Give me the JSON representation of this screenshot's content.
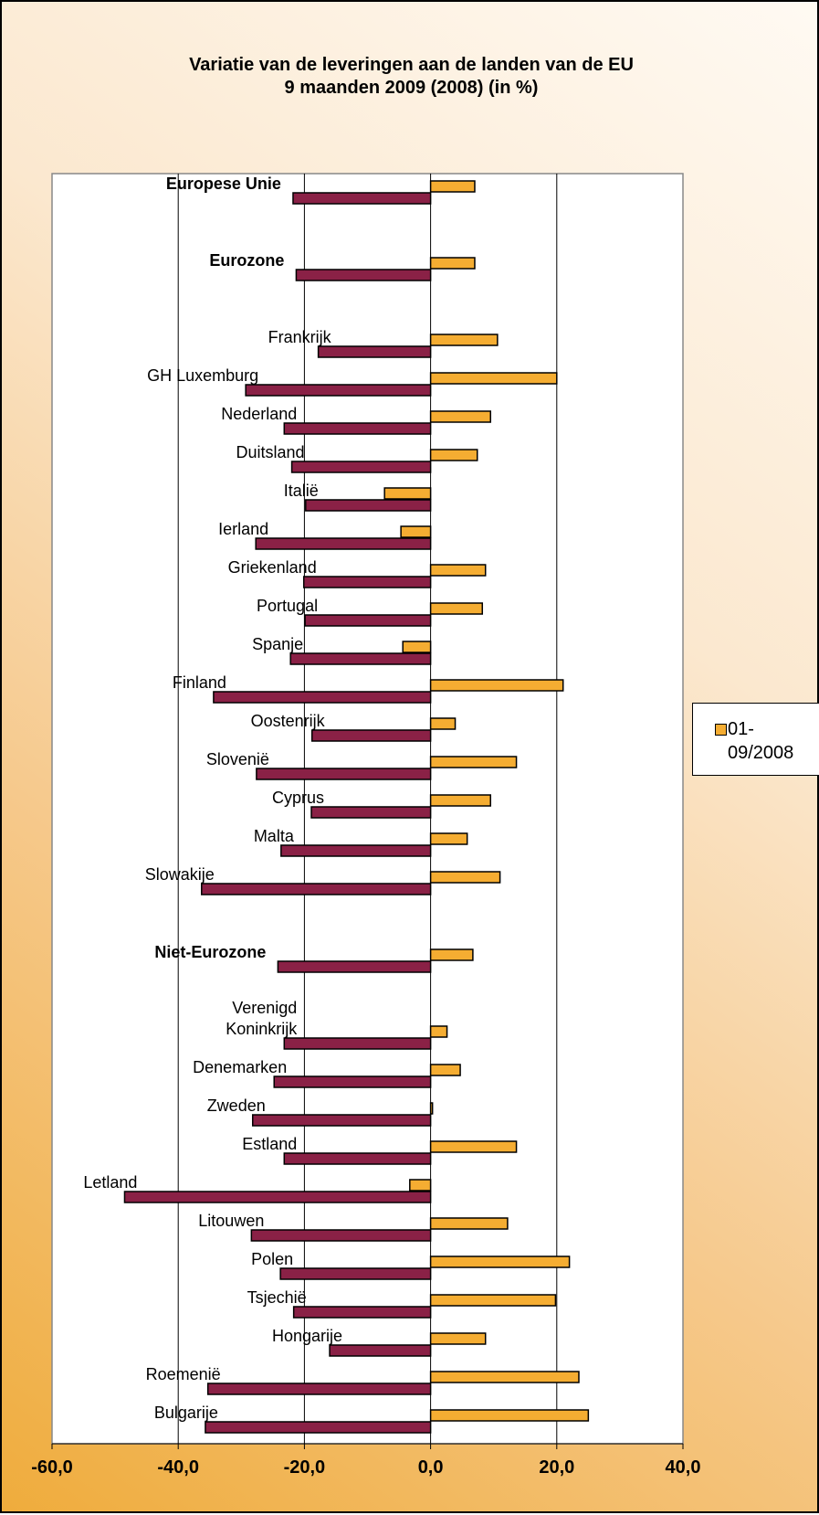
{
  "chart_data": {
    "type": "bar",
    "orientation": "horizontal",
    "title": "Variatie van de leveringen aan de landen van de EU",
    "subtitle": "9 maanden 2009 (2008) (in %)",
    "xlim": [
      -60,
      40
    ],
    "x_ticks": [
      "-60,0",
      "-40,0",
      "-20,0",
      "0,0",
      "20,0",
      "40,0"
    ],
    "x_tick_values": [
      -60,
      -40,
      -20,
      0,
      20,
      40
    ],
    "grid": "vertical",
    "legend_position": "right",
    "categories": [
      {
        "label": "Europese Unie",
        "bold": true,
        "v2008": 7.0,
        "v2009": -21.8
      },
      {
        "label": "Eurozone",
        "bold": true,
        "v2008": 7.0,
        "v2009": -21.3
      },
      {
        "label": "Frankrijk",
        "bold": false,
        "v2008": 10.6,
        "v2009": -17.8
      },
      {
        "label": "GH Luxemburg",
        "bold": false,
        "v2008": 20.0,
        "v2009": -29.3
      },
      {
        "label": "Nederland",
        "bold": false,
        "v2008": 9.5,
        "v2009": -23.2
      },
      {
        "label": "Duitsland",
        "bold": false,
        "v2008": 7.4,
        "v2009": -22.0
      },
      {
        "label": "Italië",
        "bold": false,
        "v2008": -7.3,
        "v2009": -19.8
      },
      {
        "label": "Ierland",
        "bold": false,
        "v2008": -4.7,
        "v2009": -27.7
      },
      {
        "label": "Griekenland",
        "bold": false,
        "v2008": 8.7,
        "v2009": -20.1
      },
      {
        "label": "Portugal",
        "bold": false,
        "v2008": 8.2,
        "v2009": -19.9
      },
      {
        "label": "Spanje",
        "bold": false,
        "v2008": -4.4,
        "v2009": -22.2
      },
      {
        "label": "Finland",
        "bold": false,
        "v2008": 21.0,
        "v2009": -34.4
      },
      {
        "label": "Oostenrijk",
        "bold": false,
        "v2008": 3.9,
        "v2009": -18.8
      },
      {
        "label": "Slovenië",
        "bold": false,
        "v2008": 13.6,
        "v2009": -27.6
      },
      {
        "label": "Cyprus",
        "bold": false,
        "v2008": 9.5,
        "v2009": -18.9
      },
      {
        "label": "Malta",
        "bold": false,
        "v2008": 5.8,
        "v2009": -23.7
      },
      {
        "label": "Slowakije",
        "bold": false,
        "v2008": 11.0,
        "v2009": -36.3
      },
      {
        "label": "Niet-Eurozone",
        "bold": true,
        "v2008": 6.7,
        "v2009": -24.2
      },
      {
        "label": "Verenigd\nKoninkrijk",
        "bold": false,
        "v2008": 2.6,
        "v2009": -23.2
      },
      {
        "label": "Denemarken",
        "bold": false,
        "v2008": 4.7,
        "v2009": -24.8
      },
      {
        "label": "Zweden",
        "bold": false,
        "v2008": 0.3,
        "v2009": -28.2
      },
      {
        "label": "Estland",
        "bold": false,
        "v2008": 13.6,
        "v2009": -23.2
      },
      {
        "label": "Letland",
        "bold": false,
        "v2008": -3.3,
        "v2009": -48.5
      },
      {
        "label": "Litouwen",
        "bold": false,
        "v2008": 12.2,
        "v2009": -28.4
      },
      {
        "label": "Polen",
        "bold": false,
        "v2008": 22.0,
        "v2009": -23.8
      },
      {
        "label": "Tsjechië",
        "bold": false,
        "v2008": 19.8,
        "v2009": -21.7
      },
      {
        "label": "Hongarije",
        "bold": false,
        "v2008": 8.7,
        "v2009": -16.0
      },
      {
        "label": "Roemenië",
        "bold": false,
        "v2008": 23.5,
        "v2009": -35.3
      },
      {
        "label": "Bulgarije",
        "bold": false,
        "v2008": 25.0,
        "v2009": -35.7
      }
    ],
    "series": [
      {
        "name": "01-09/2008",
        "key": "v2008",
        "color": "#f5ad32",
        "in_legend": true
      },
      {
        "key": "v2009",
        "color": "#8a2146",
        "in_legend": false
      }
    ]
  },
  "legend": {
    "label": "01-09/2008",
    "label_line1": "01-",
    "label_line2": "09/2008"
  }
}
